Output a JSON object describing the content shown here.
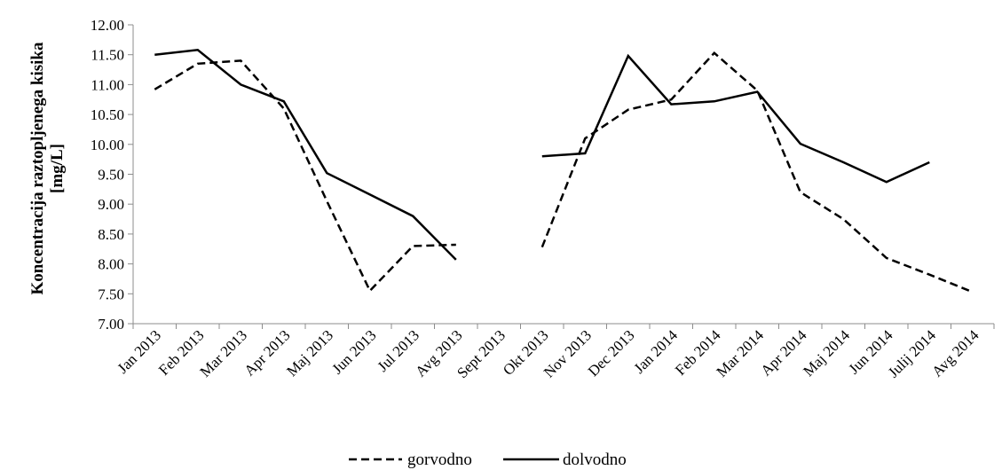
{
  "chart_data": {
    "type": "line",
    "categories": [
      "Jan 2013",
      "Feb 2013",
      "Mar 2013",
      "Apr 2013",
      "Maj 2013",
      "Jun 2013",
      "Jul 2013",
      "Avg 2013",
      "Sept 2013",
      "Okt 2013",
      "Nov 2013",
      "Dec 2013",
      "Jan 2014",
      "Feb 2014",
      "Mar 2014",
      "Apr 2014",
      "Maj 2014",
      "Jun 2014",
      "Julij 2014",
      "Avg 2014"
    ],
    "series": [
      {
        "name": "gorvodno",
        "style": "dashed",
        "color": "#000000",
        "values": [
          10.92,
          11.35,
          11.4,
          10.6,
          9.05,
          7.55,
          8.3,
          8.32,
          null,
          8.28,
          10.1,
          10.58,
          10.75,
          11.53,
          10.9,
          9.2,
          8.75,
          8.1,
          7.82,
          7.53
        ]
      },
      {
        "name": "dolvodno",
        "style": "solid",
        "color": "#000000",
        "values": [
          11.5,
          11.58,
          11.0,
          10.72,
          9.52,
          9.16,
          8.8,
          8.07,
          null,
          9.8,
          9.85,
          11.48,
          10.67,
          10.72,
          10.88,
          10.01,
          9.7,
          9.37,
          9.7,
          null
        ]
      }
    ],
    "yticks": [
      "7.00",
      "7.50",
      "8.00",
      "8.50",
      "9.00",
      "9.50",
      "10.00",
      "10.50",
      "11.00",
      "11.50",
      "12.00"
    ],
    "ylim": [
      7.0,
      12.0
    ],
    "ylabel_line1": "Koncentracija   raztopljenega   kisika",
    "ylabel_line2": "[mg/L]",
    "xlabel": "",
    "title": "",
    "grid": false,
    "legend_position": "bottom-center"
  }
}
